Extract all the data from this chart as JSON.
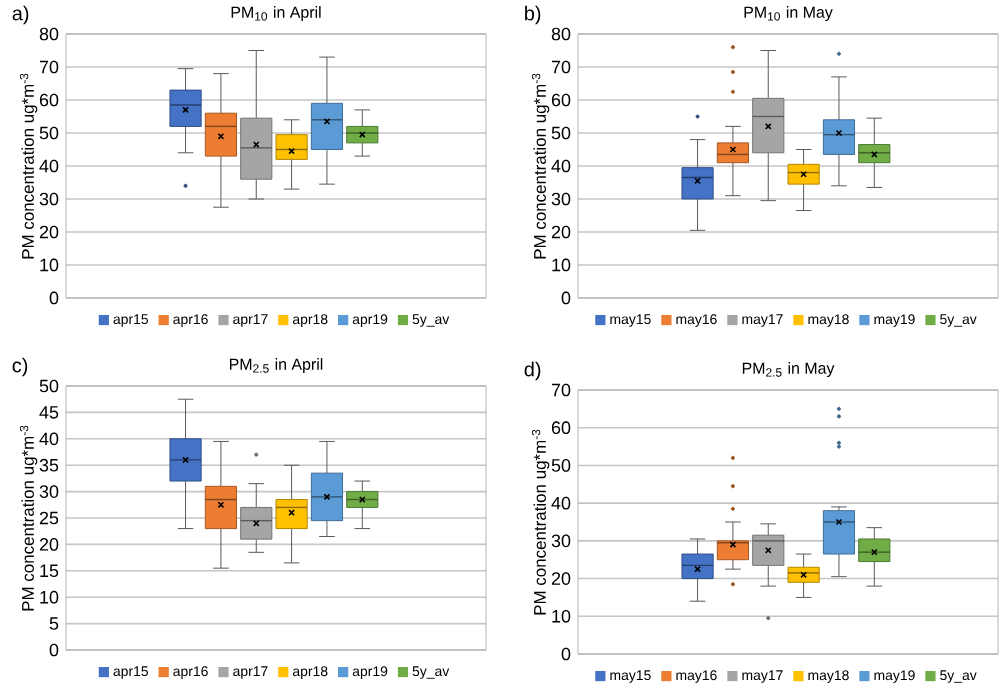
{
  "chart_data": [
    {
      "type": "box",
      "title": "PM$_{10}$ in April",
      "ylabel": "PM concentration ug*m$^{-3}$",
      "annotations": [
        "a)"
      ],
      "categories": [
        null
      ],
      "ylim": [
        0,
        80
      ],
      "yticks": [
        0,
        10,
        20,
        30,
        40,
        50,
        60,
        70,
        80
      ],
      "grid": "y",
      "legend": "bottom",
      "tick_labels": "y",
      "series": [
        {
          "name": "apr15",
          "color": "#4472c4",
          "boxes": [
            {
              "low": 44,
              "q1": 52,
              "median": 58.5,
              "q3": 63,
              "high": 69.5,
              "mean": 57,
              "outliers": [
                34
              ]
            }
          ]
        },
        {
          "name": "apr16",
          "color": "#ed7d31",
          "boxes": [
            {
              "low": 27.5,
              "q1": 43,
              "median": 52,
              "q3": 56,
              "high": 68,
              "mean": 49
            }
          ]
        },
        {
          "name": "apr17",
          "color": "#a5a5a5",
          "boxes": [
            {
              "low": 30,
              "q1": 36,
              "median": 45.5,
              "q3": 54.5,
              "high": 75,
              "mean": 46.5
            }
          ]
        },
        {
          "name": "apr18",
          "color": "#ffc000",
          "boxes": [
            {
              "low": 33,
              "q1": 42,
              "median": 45,
              "q3": 49.5,
              "high": 54,
              "mean": 44.5
            }
          ]
        },
        {
          "name": "apr19",
          "color": "#5b9bd5",
          "boxes": [
            {
              "low": 34.5,
              "q1": 45,
              "median": 54,
              "q3": 59,
              "high": 73,
              "mean": 53.5
            }
          ]
        },
        {
          "name": "5y_av",
          "color": "#70ad47",
          "boxes": [
            {
              "low": 43,
              "q1": 47,
              "median": 50,
              "q3": 52,
              "high": 57,
              "mean": 49.5
            }
          ]
        }
      ]
    },
    {
      "type": "box",
      "title": "PM$_{10}$ in May",
      "ylabel": "PM concentration ug*m$^{-3}$",
      "annotations": [
        "b)"
      ],
      "categories": [
        null
      ],
      "ylim": [
        0,
        80
      ],
      "yticks": [
        0,
        10,
        20,
        30,
        40,
        50,
        60,
        70,
        80
      ],
      "grid": "y",
      "legend": "bottom",
      "tick_labels": "y",
      "series": [
        {
          "name": "may15",
          "color": "#4472c4",
          "boxes": [
            {
              "low": 20.5,
              "q1": 30,
              "median": 36.5,
              "q3": 39.5,
              "high": 48,
              "mean": 35.5,
              "outliers": [
                55
              ]
            }
          ]
        },
        {
          "name": "may16",
          "color": "#ed7d31",
          "boxes": [
            {
              "low": 31,
              "q1": 41,
              "median": 43.5,
              "q3": 47,
              "high": 52,
              "mean": 45,
              "outliers": [
                62.5,
                68.5,
                76
              ]
            }
          ]
        },
        {
          "name": "may17",
          "color": "#a5a5a5",
          "boxes": [
            {
              "low": 29.5,
              "q1": 44,
              "median": 55,
              "q3": 60.5,
              "high": 75,
              "mean": 52
            }
          ]
        },
        {
          "name": "may18",
          "color": "#ffc000",
          "boxes": [
            {
              "low": 26.5,
              "q1": 34.5,
              "median": 38,
              "q3": 40.5,
              "high": 45,
              "mean": 37.5
            }
          ]
        },
        {
          "name": "may19",
          "color": "#5b9bd5",
          "boxes": [
            {
              "low": 34,
              "q1": 43.5,
              "median": 49.5,
              "q3": 54,
              "high": 67,
              "mean": 50,
              "outliers": [
                74
              ]
            }
          ]
        },
        {
          "name": "5y_av",
          "color": "#70ad47",
          "boxes": [
            {
              "low": 33.5,
              "q1": 41,
              "median": 44,
              "q3": 46.5,
              "high": 54.5,
              "mean": 43.5
            }
          ]
        }
      ]
    },
    {
      "type": "box",
      "title": "PM$_{2.5}$ in April",
      "ylabel": "PM concentration ug*m$^{-3}$",
      "annotations": [
        "c)"
      ],
      "categories": [
        null
      ],
      "ylim": [
        0,
        50
      ],
      "yticks": [
        0,
        5,
        10,
        15,
        20,
        25,
        30,
        35,
        40,
        45,
        50
      ],
      "grid": "y",
      "legend": "bottom",
      "tick_labels": "y",
      "series": [
        {
          "name": "apr15",
          "color": "#4472c4",
          "boxes": [
            {
              "low": 23,
              "q1": 32,
              "median": 36,
              "q3": 40,
              "high": 47.5,
              "mean": 36
            }
          ]
        },
        {
          "name": "apr16",
          "color": "#ed7d31",
          "boxes": [
            {
              "low": 15.5,
              "q1": 23,
              "median": 28.5,
              "q3": 31,
              "high": 39.5,
              "mean": 27.5
            }
          ]
        },
        {
          "name": "apr17",
          "color": "#a5a5a5",
          "boxes": [
            {
              "low": 18.5,
              "q1": 21,
              "median": 24.5,
              "q3": 27,
              "high": 31.5,
              "mean": 24,
              "outliers": [
                37
              ]
            }
          ]
        },
        {
          "name": "apr18",
          "color": "#ffc000",
          "boxes": [
            {
              "low": 16.5,
              "q1": 23,
              "median": 27,
              "q3": 28.5,
              "high": 35,
              "mean": 26
            }
          ]
        },
        {
          "name": "apr19",
          "color": "#5b9bd5",
          "boxes": [
            {
              "low": 21.5,
              "q1": 24.5,
              "median": 29,
              "q3": 33.5,
              "high": 39.5,
              "mean": 29
            }
          ]
        },
        {
          "name": "5y_av",
          "color": "#70ad47",
          "boxes": [
            {
              "low": 23,
              "q1": 27,
              "median": 28.5,
              "q3": 30,
              "high": 32,
              "mean": 28.5
            }
          ]
        }
      ]
    },
    {
      "type": "box",
      "title": "PM$_{2.5}$ in May",
      "ylabel": "PM concentration ug*m$^{-3}$",
      "annotations": [
        "d)"
      ],
      "categories": [
        null
      ],
      "ylim": [
        0,
        70
      ],
      "yticks": [
        0,
        10,
        20,
        30,
        40,
        50,
        60,
        70
      ],
      "grid": "y",
      "legend": "bottom",
      "tick_labels": "y",
      "series": [
        {
          "name": "may15",
          "color": "#4472c4",
          "boxes": [
            {
              "low": 14,
              "q1": 20,
              "median": 23.5,
              "q3": 26.5,
              "high": 30.5,
              "mean": 22.5
            }
          ]
        },
        {
          "name": "may16",
          "color": "#ed7d31",
          "boxes": [
            {
              "low": 22.5,
              "q1": 25,
              "median": 29.5,
              "q3": 30,
              "high": 35,
              "mean": 29,
              "outliers": [
                18.5,
                38.5,
                44.5,
                52
              ]
            }
          ]
        },
        {
          "name": "may17",
          "color": "#a5a5a5",
          "boxes": [
            {
              "low": 18,
              "q1": 23.5,
              "median": 30,
              "q3": 31.5,
              "high": 34.5,
              "mean": 27.5,
              "outliers": [
                9.5
              ]
            }
          ]
        },
        {
          "name": "may18",
          "color": "#ffc000",
          "boxes": [
            {
              "low": 15,
              "q1": 19,
              "median": 21.5,
              "q3": 23,
              "high": 26.5,
              "mean": 21
            }
          ]
        },
        {
          "name": "may19",
          "color": "#5b9bd5",
          "boxes": [
            {
              "low": 20.5,
              "q1": 26.5,
              "median": 35,
              "q3": 38,
              "high": 39,
              "mean": 35,
              "outliers": [
                55,
                56,
                63,
                65
              ]
            }
          ]
        },
        {
          "name": "5y_av",
          "color": "#70ad47",
          "boxes": [
            {
              "low": 18,
              "q1": 24.5,
              "median": 27,
              "q3": 30.5,
              "high": 33.5,
              "mean": 27
            }
          ]
        }
      ]
    }
  ]
}
